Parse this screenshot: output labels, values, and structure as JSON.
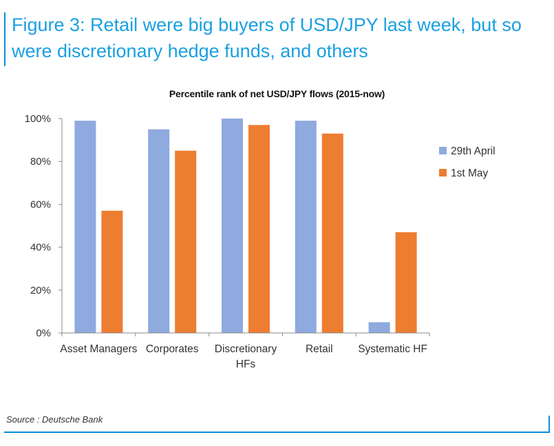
{
  "figure": {
    "title": "Figure 3: Retail were big buyers of USD/JPY last week, but so were discretionary hedge funds, and others",
    "source": "Source : Deutsche Bank"
  },
  "colors": {
    "accent": "#1aa0e0",
    "rule": "#0b8fd6",
    "series_29th_april": "#8eaade",
    "series_1st_may": "#ed7d31"
  },
  "chart_data": {
    "type": "bar",
    "title": "Percentile rank of net USD/JPY flows (2015-now)",
    "categories": [
      [
        "Asset Managers"
      ],
      [
        "Corporates"
      ],
      [
        "Discretionary",
        "HFs"
      ],
      [
        "Retail"
      ],
      [
        "Systematic HF"
      ]
    ],
    "series": [
      {
        "name": "29th April",
        "color": "#8eaade",
        "values": [
          99,
          95,
          100,
          99,
          5
        ]
      },
      {
        "name": "1st May",
        "color": "#ed7d31",
        "values": [
          57,
          85,
          97,
          93,
          47
        ]
      }
    ],
    "ylim": [
      0,
      100
    ],
    "yticks": [
      0,
      20,
      40,
      60,
      80,
      100
    ],
    "ytick_labels": [
      "0%",
      "20%",
      "40%",
      "60%",
      "80%",
      "100%"
    ],
    "xlabel": "",
    "ylabel": "",
    "grid": false,
    "legend_position": "right"
  }
}
